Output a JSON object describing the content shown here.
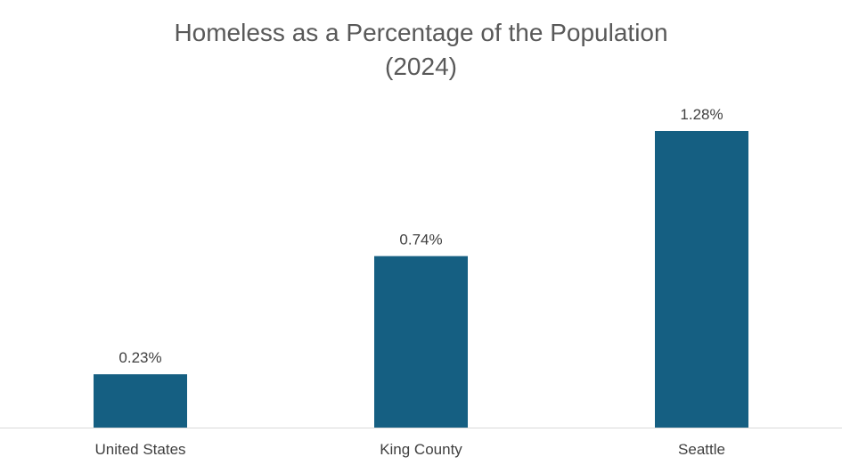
{
  "chart_data": {
    "type": "bar",
    "title_lines": [
      "Homeless as a Percentage of the Population",
      "(2024)"
    ],
    "categories": [
      "United States",
      "King County",
      "Seattle"
    ],
    "values": [
      0.23,
      0.74,
      1.28
    ],
    "data_labels": [
      "0.23%",
      "0.74%",
      "1.28%"
    ],
    "xlabel": "",
    "ylabel": "",
    "ylim": [
      0,
      1.6
    ],
    "grid": false,
    "legend": "none",
    "bar_color": "#155F82",
    "axis_color": "#D9D9D9"
  }
}
